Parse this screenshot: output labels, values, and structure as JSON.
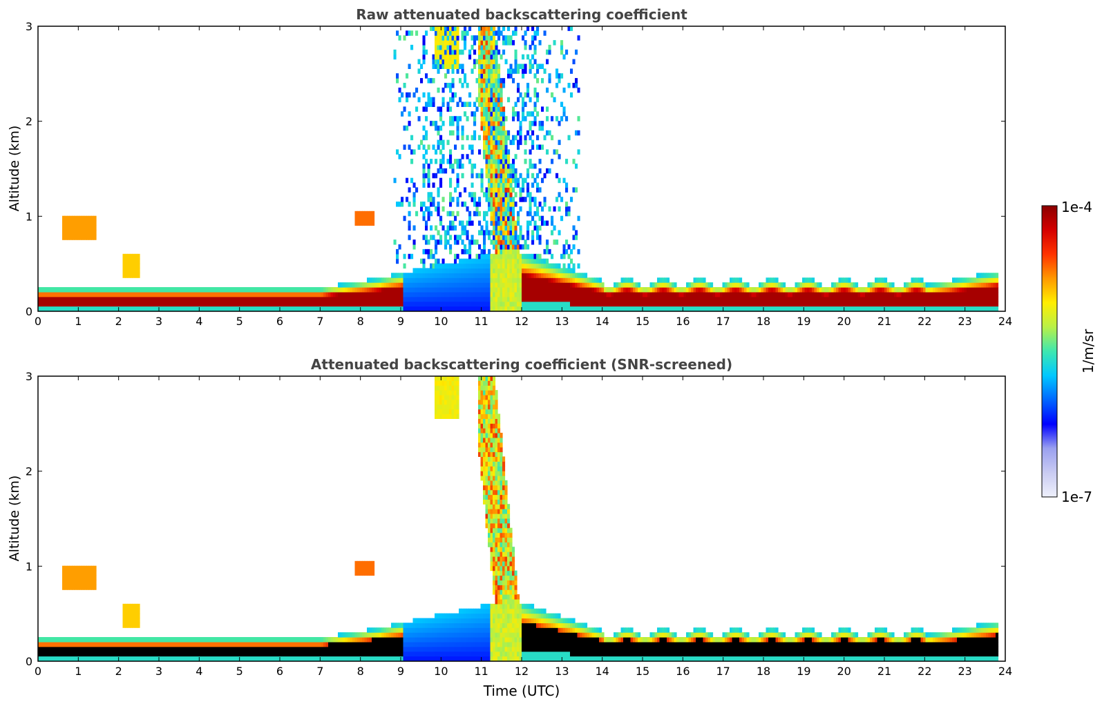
{
  "chart_data": [
    {
      "type": "heatmap",
      "title": "Raw attenuated backscattering coefficient",
      "xlabel": "",
      "ylabel": "Altitude (km)",
      "xlim": [
        0,
        24
      ],
      "ylim": [
        0,
        3
      ],
      "xticks": [
        "0",
        "1",
        "2",
        "3",
        "4",
        "5",
        "6",
        "7",
        "8",
        "9",
        "10",
        "11",
        "12",
        "13",
        "14",
        "15",
        "16",
        "17",
        "18",
        "19",
        "20",
        "21",
        "22",
        "23",
        "24"
      ],
      "yticks": [
        "0",
        "1",
        "2",
        "3"
      ],
      "features": [
        {
          "name": "boundary-layer aerosol",
          "t_start": 0,
          "t_end": 23.8,
          "top_km": 0.3,
          "level": "high"
        },
        {
          "name": "noise region",
          "t_start": 8.8,
          "t_end": 13.3,
          "top_km": 3.0,
          "level": "low-mid"
        },
        {
          "name": "cirrus/plume",
          "t_start": 10.9,
          "t_end": 12.0,
          "top_km": 3.0,
          "level": "mid-high"
        }
      ]
    },
    {
      "type": "heatmap",
      "title": "Attenuated backscattering coefficient (SNR-screened)",
      "xlabel": "Time (UTC)",
      "ylabel": "Altitude (km)",
      "xlim": [
        0,
        24
      ],
      "ylim": [
        0,
        3
      ],
      "xticks": [
        "0",
        "1",
        "2",
        "3",
        "4",
        "5",
        "6",
        "7",
        "8",
        "9",
        "10",
        "11",
        "12",
        "13",
        "14",
        "15",
        "16",
        "17",
        "18",
        "19",
        "20",
        "21",
        "22",
        "23",
        "24"
      ],
      "yticks": [
        "0",
        "1",
        "2",
        "3"
      ],
      "features": [
        {
          "name": "boundary-layer aerosol",
          "t_start": 0,
          "t_end": 23.8,
          "top_km": 0.3,
          "level": "high"
        },
        {
          "name": "convective mixed layer",
          "t_start": 8.5,
          "t_end": 13.8,
          "top_km": 0.65,
          "level": "low-high"
        },
        {
          "name": "cirrus/plume",
          "t_start": 10.9,
          "t_end": 12.0,
          "top_km": 3.0,
          "level": "mid-high"
        }
      ]
    }
  ],
  "colorbar": {
    "label": "1/m/sr",
    "max_label": "1e-4",
    "min_label": "1e-7",
    "colors": [
      "#eef0fb",
      "#c9cbf2",
      "#9aa0f0",
      "#0000ff",
      "#0066ff",
      "#00c8ff",
      "#3ee8b0",
      "#b8f048",
      "#ffee00",
      "#ff9900",
      "#ff3300",
      "#d40000",
      "#8b0000"
    ]
  }
}
